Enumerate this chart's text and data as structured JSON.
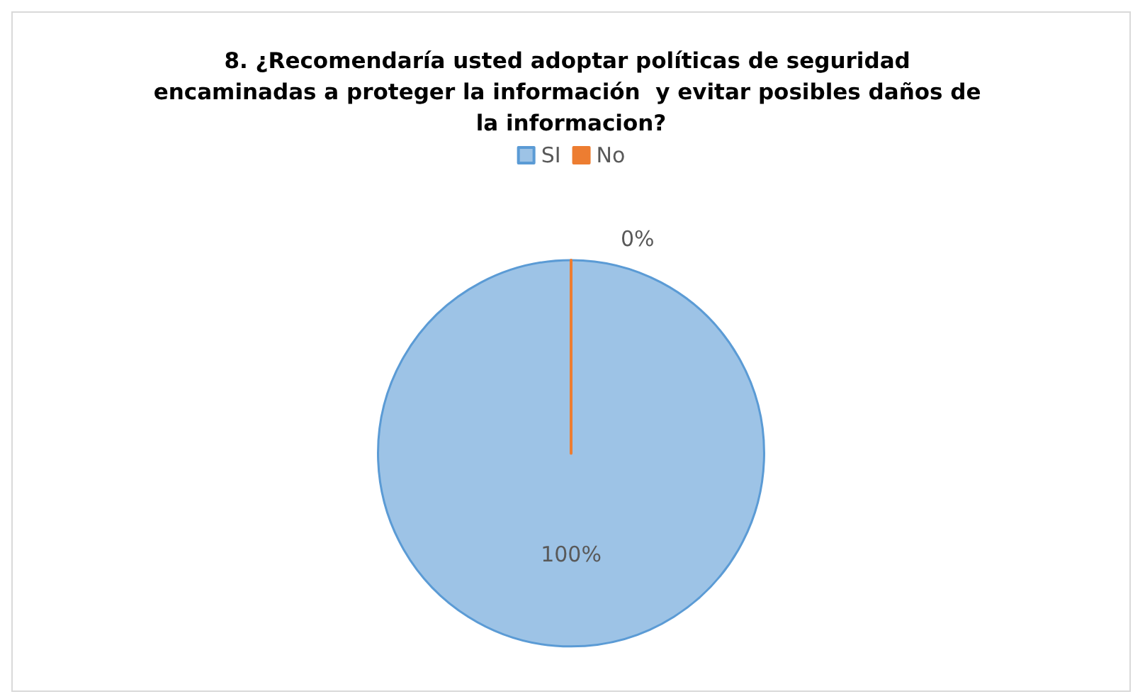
{
  "chart_data": {
    "type": "pie",
    "title": "8. ¿Recomendaría usted adoptar políticas de seguridad encaminadas a proteger la información  y evitar posibles daños de la informacion?",
    "categories": [
      "SI",
      "No"
    ],
    "values": [
      100,
      0
    ],
    "colors": [
      "#9dc3e6",
      "#ed7d31"
    ],
    "value_labels": [
      "100%",
      "0%"
    ],
    "legend": "top"
  }
}
